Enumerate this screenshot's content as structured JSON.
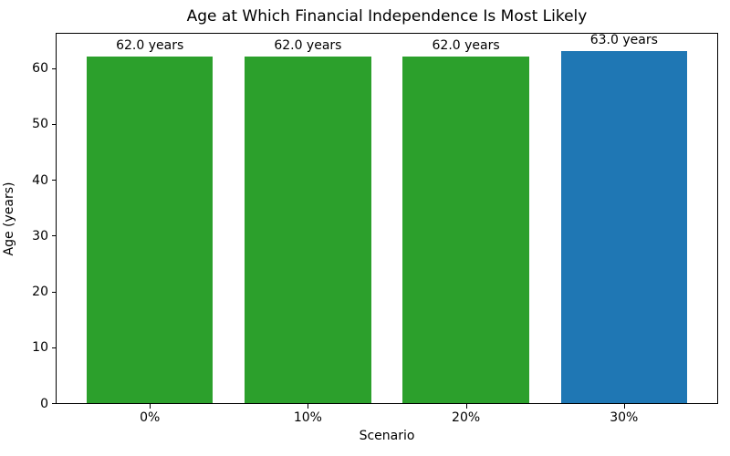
{
  "chart_data": {
    "type": "bar",
    "title": "Age at Which Financial Independence Is Most Likely",
    "xlabel": "Scenario",
    "ylabel": "Age (years)",
    "categories": [
      "0%",
      "10%",
      "20%",
      "30%"
    ],
    "values": [
      62.0,
      62.0,
      62.0,
      63.0
    ],
    "bar_labels": [
      "62.0 years",
      "62.0 years",
      "62.0 years",
      "63.0 years"
    ],
    "bar_colors": [
      "#2ca02c",
      "#2ca02c",
      "#2ca02c",
      "#1f77b4"
    ],
    "ylim": [
      0,
      66.15
    ],
    "yticks": [
      0,
      10,
      20,
      30,
      40,
      50,
      60
    ],
    "grid": false,
    "legend": null,
    "colors": {
      "green_bar": "#2ca02c",
      "blue_bar": "#1f77b4",
      "text": "#000000",
      "spine": "#000000",
      "background": "#ffffff"
    }
  }
}
